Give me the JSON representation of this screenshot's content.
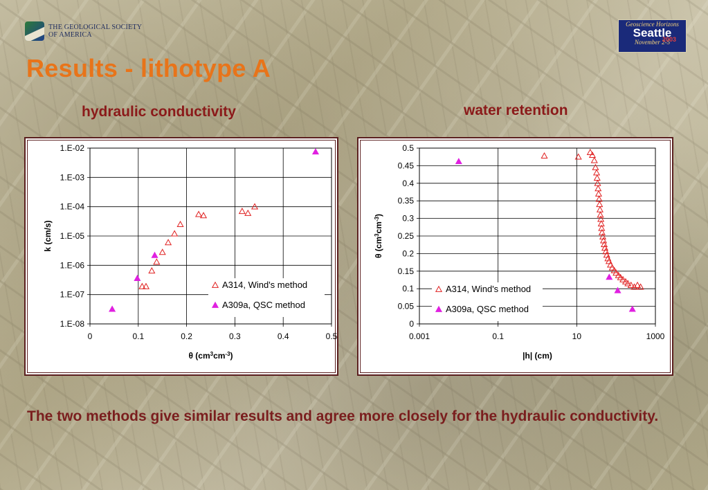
{
  "header": {
    "society_line1": "THE GEOLOGICAL SOCIETY",
    "society_line2": "OF AMERICA",
    "badge_line1": "Geoscience Horizons",
    "badge_city": "Seattle",
    "badge_year": "2003",
    "badge_dates": "November 2-5"
  },
  "title": "Results - lithotype A",
  "subtitle_left": "hydraulic conductivity",
  "subtitle_right": "water retention",
  "caption": "The two methods give similar results and agree more closely for the hydraulic conductivity.",
  "colors": {
    "series1": "#e02020",
    "series2": "#e020e0",
    "title": "#e8741a",
    "subtitle": "#8b1a1a"
  },
  "chart_data": [
    {
      "type": "scatter",
      "xlabel": "θ (cm³cm⁻³)",
      "ylabel": "k (cm/s)",
      "xlim": [
        0,
        0.5
      ],
      "ylim": [
        1e-08,
        0.01
      ],
      "yscale": "log",
      "xticks": [
        "0",
        "0.1",
        "0.2",
        "0.3",
        "0.4",
        "0.5"
      ],
      "yticks": [
        "1.E-02",
        "1.E-03",
        "1.E-04",
        "1.E-05",
        "1.E-06",
        "1.E-07",
        "1.E-08"
      ],
      "grid": true,
      "legend_position": "bottom-right",
      "series": [
        {
          "name": "A314, Wind's method",
          "marker": "open-triangle",
          "x": [
            0.108,
            0.116,
            0.128,
            0.138,
            0.15,
            0.162,
            0.175,
            0.187,
            0.225,
            0.235,
            0.315,
            0.327,
            0.341
          ],
          "y": [
            1.9e-07,
            1.9e-07,
            6.5e-07,
            1.3e-06,
            2.8e-06,
            6e-06,
            1.2e-05,
            2.5e-05,
            5.5e-05,
            5e-05,
            7e-05,
            6e-05,
            0.0001
          ]
        },
        {
          "name": "A309a, QSC method",
          "marker": "filled-triangle",
          "x": [
            0.046,
            0.098,
            0.134,
            0.467
          ],
          "y": [
            3.2e-08,
            3.6e-07,
            2.2e-06,
            0.0075
          ]
        }
      ]
    },
    {
      "type": "scatter",
      "xlabel": "|h| (cm)",
      "ylabel": "θ (cm³cm⁻³)",
      "xlim": [
        0.001,
        1000
      ],
      "ylim": [
        0,
        0.5
      ],
      "xscale": "log",
      "xticks": [
        "0.001",
        "0.1",
        "10",
        "1000"
      ],
      "yticks": [
        "0.5",
        "0.45",
        "0.4",
        "0.35",
        "0.3",
        "0.25",
        "0.2",
        "0.15",
        "0.1",
        "0.05",
        "0"
      ],
      "grid": true,
      "legend_position": "bottom-left",
      "series": [
        {
          "name": "A314, Wind's method",
          "marker": "open-triangle",
          "x": [
            1.5,
            11,
            22,
            25,
            28,
            30,
            32,
            33,
            34,
            35,
            36,
            37,
            38,
            39,
            40,
            41,
            42,
            43,
            44,
            46,
            48,
            50,
            52,
            55,
            58,
            62,
            66,
            72,
            80,
            90,
            100,
            115,
            130,
            150,
            175,
            200,
            240,
            290,
            350,
            420
          ],
          "y": [
            0.478,
            0.475,
            0.488,
            0.48,
            0.465,
            0.445,
            0.43,
            0.415,
            0.4,
            0.385,
            0.37,
            0.355,
            0.34,
            0.325,
            0.31,
            0.298,
            0.285,
            0.272,
            0.26,
            0.248,
            0.237,
            0.226,
            0.216,
            0.206,
            0.196,
            0.186,
            0.178,
            0.168,
            0.16,
            0.152,
            0.145,
            0.138,
            0.132,
            0.126,
            0.12,
            0.115,
            0.11,
            0.105,
            0.11,
            0.105
          ]
        },
        {
          "name": "A309a, QSC method",
          "marker": "filled-triangle",
          "x": [
            0.01,
            67,
            110,
            260
          ],
          "y": [
            0.462,
            0.133,
            0.095,
            0.042
          ]
        }
      ]
    }
  ]
}
